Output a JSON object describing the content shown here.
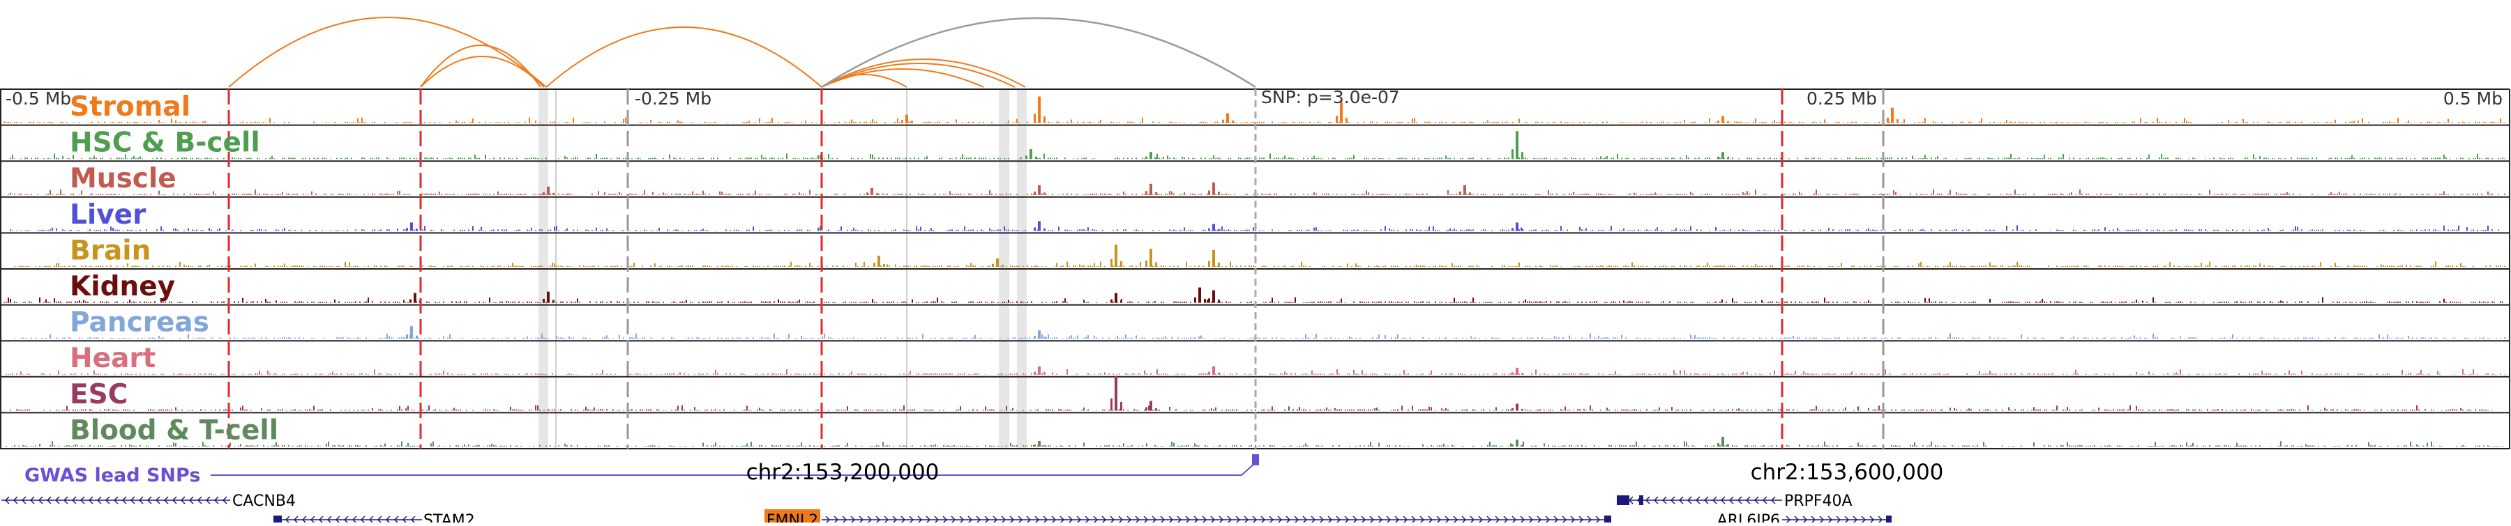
{
  "chart_data": {
    "type": "genome-browser",
    "colors": {
      "vline_red": "#e8262b",
      "vline_gray": "#999999",
      "highlight": "#e6e6e6",
      "gwas": "#6a4fd8",
      "gene": "#1a1a7a",
      "snp_arc": "#9a9a9a"
    },
    "ruler": {
      "ticks": [
        {
          "label": "-0.5 Mb"
        },
        {
          "label": "-0.25 Mb"
        },
        {
          "label": "0.25 Mb"
        },
        {
          "label": "0.5 Mb"
        }
      ],
      "snp_label": "SNP: p=3.0e-07"
    },
    "tracks": [
      {
        "name": "Stromal",
        "color": "#f07a1a"
      },
      {
        "name": "HSC & B-cell",
        "color": "#4f9e4f"
      },
      {
        "name": "Muscle",
        "color": "#c25a4e"
      },
      {
        "name": "Liver",
        "color": "#5050d8"
      },
      {
        "name": "Brain",
        "color": "#c8941e"
      },
      {
        "name": "Kidney",
        "color": "#6b0d0d"
      },
      {
        "name": "Pancreas",
        "color": "#82a6dc"
      },
      {
        "name": "Heart",
        "color": "#d86e7e"
      },
      {
        "name": "ESC",
        "color": "#9a3a5e"
      },
      {
        "name": "Blood & T-cell",
        "color": "#5e8a5e"
      }
    ],
    "gwas": {
      "label": "GWAS lead SNPs"
    },
    "coordinates": [
      "chr2:153,200,000",
      "chr2:153,600,000"
    ],
    "genes": [
      {
        "name": "CACNB4"
      },
      {
        "name": "STAM2"
      },
      {
        "name": "FMNL2",
        "highlight": "#f07a1a"
      },
      {
        "name": "PRPF40A"
      },
      {
        "name": "ARL6IP6"
      }
    ]
  }
}
